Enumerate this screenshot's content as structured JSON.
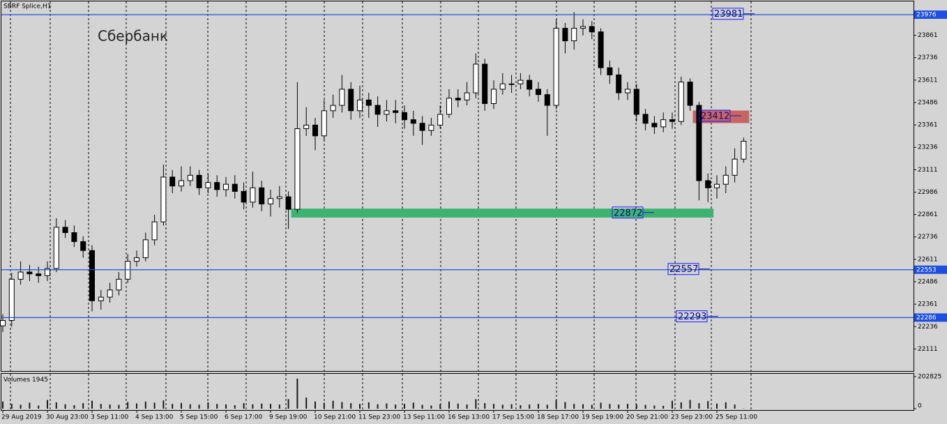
{
  "chart_data": {
    "type": "candlestick",
    "title": "SBRF Splice,H1",
    "annotation": "Сбербанк",
    "categories": [
      "29 Aug 2019",
      null,
      null,
      null,
      null,
      "30 Aug 23:00",
      null,
      null,
      null,
      null,
      "3 Sep 11:00",
      null,
      null,
      null,
      null,
      "4 Sep 13:00",
      null,
      null,
      null,
      null,
      "5 Sep 15:00",
      null,
      null,
      null,
      null,
      "6 Sep 17:00",
      null,
      null,
      null,
      null,
      "9 Sep 19:00",
      null,
      null,
      null,
      null,
      "10 Sep 21:00",
      null,
      null,
      null,
      null,
      "11 Sep 23:00",
      null,
      null,
      null,
      null,
      "13 Sep 11:00",
      null,
      null,
      null,
      null,
      "16 Sep 13:00",
      null,
      null,
      null,
      null,
      "17 Sep 15:00",
      null,
      null,
      null,
      null,
      "18 Sep 17:00",
      null,
      null,
      null,
      null,
      "19 Sep 19:00",
      null,
      null,
      null,
      null,
      "20 Sep 21:00",
      null,
      null,
      null,
      null,
      "23 Sep 23:00",
      null,
      null,
      null,
      null,
      "25 Sep 11:00",
      null,
      null,
      null
    ],
    "open": [
      22240,
      22270,
      22500,
      22540,
      22530,
      22520,
      22560,
      22790,
      22760,
      22710,
      22660,
      22380,
      22400,
      22440,
      22500,
      22600,
      22620,
      22720,
      22820,
      23070,
      23020,
      23050,
      23080,
      23010,
      23040,
      23000,
      23030,
      22990,
      22930,
      23010,
      22920,
      22950,
      22960,
      22890,
      23340,
      23360,
      23300,
      23440,
      23470,
      23560,
      23440,
      23500,
      23470,
      23420,
      23440,
      23430,
      23390,
      23370,
      23330,
      23360,
      23420,
      23510,
      23500,
      23540,
      23700,
      23480,
      23560,
      23590,
      23590,
      23610,
      23560,
      23530,
      23470,
      23900,
      23830,
      23900,
      23910,
      23880,
      23680,
      23640,
      23540,
      23560,
      23420,
      23370,
      23350,
      23390,
      23380,
      23600,
      23470,
      23050,
      23010,
      23030,
      23080,
      23170
    ],
    "high": [
      22305,
      22535,
      22600,
      22580,
      22570,
      22600,
      22840,
      22830,
      22800,
      22740,
      22690,
      22440,
      22480,
      22540,
      22640,
      22660,
      22760,
      22860,
      23140,
      23110,
      23130,
      23130,
      23110,
      23090,
      23080,
      23070,
      23080,
      23040,
      23100,
      23050,
      23000,
      23020,
      22990,
      23600,
      23460,
      23400,
      23500,
      23530,
      23640,
      23600,
      23580,
      23540,
      23520,
      23500,
      23500,
      23470,
      23440,
      23410,
      23400,
      23470,
      23560,
      23560,
      23600,
      23760,
      23730,
      23610,
      23650,
      23640,
      23650,
      23640,
      23600,
      23560,
      23950,
      23930,
      23990,
      23950,
      23940,
      23900,
      23720,
      23680,
      23600,
      23590,
      23450,
      23410,
      23430,
      23430,
      23630,
      23620,
      23490,
      23090,
      23080,
      23130,
      23230,
      23290
    ],
    "low": [
      22205,
      22235,
      22470,
      22490,
      22480,
      22490,
      22540,
      22730,
      22680,
      22620,
      22320,
      22330,
      22370,
      22410,
      22480,
      22570,
      22600,
      22690,
      22800,
      22980,
      22990,
      23020,
      22970,
      22980,
      22960,
      22960,
      22950,
      22890,
      22900,
      22880,
      22850,
      22900,
      22780,
      22870,
      23300,
      23220,
      23270,
      23400,
      23430,
      23390,
      23400,
      23400,
      23350,
      23380,
      23370,
      23340,
      23300,
      23250,
      23300,
      23340,
      23400,
      23460,
      23470,
      23510,
      23440,
      23450,
      23530,
      23540,
      23560,
      23520,
      23490,
      23300,
      23450,
      23760,
      23780,
      23860,
      23840,
      23640,
      23590,
      23500,
      23500,
      23380,
      23330,
      23310,
      23320,
      23340,
      23360,
      23440,
      22940,
      22930,
      22950,
      22980,
      23040,
      23150
    ],
    "close": [
      22270,
      22500,
      22540,
      22530,
      22520,
      22560,
      22790,
      22760,
      22710,
      22660,
      22380,
      22400,
      22440,
      22500,
      22600,
      22620,
      22720,
      22820,
      23070,
      23020,
      23050,
      23080,
      23010,
      23040,
      23000,
      23030,
      22990,
      22930,
      23010,
      22920,
      22950,
      22960,
      22890,
      23340,
      23360,
      23300,
      23440,
      23470,
      23560,
      23440,
      23500,
      23470,
      23420,
      23440,
      23430,
      23390,
      23370,
      23330,
      23360,
      23420,
      23510,
      23500,
      23540,
      23700,
      23480,
      23560,
      23590,
      23590,
      23610,
      23560,
      23530,
      23470,
      23900,
      23830,
      23900,
      23910,
      23880,
      23680,
      23640,
      23540,
      23560,
      23420,
      23370,
      23350,
      23390,
      23380,
      23600,
      23470,
      23050,
      23010,
      23030,
      23080,
      23170,
      23270
    ],
    "ylim": [
      21988,
      24050
    ],
    "yticks": [
      22111,
      22236,
      22361,
      22486,
      22611,
      22736,
      22861,
      22986,
      23111,
      23236,
      23361,
      23486,
      23611,
      23736,
      23861
    ],
    "hlines": [
      {
        "level": 23976,
        "tag": 23981,
        "color": "#1f4fe0"
      },
      {
        "level": 22553,
        "tag": 22557,
        "color": "#1f4fe0"
      },
      {
        "level": 22286,
        "tag": 22293,
        "color": "#1f4fe0"
      }
    ],
    "zones": [
      {
        "label": 23412,
        "ylim": [
          23371,
          23441
        ],
        "start": 77,
        "end": 83,
        "color": "#c86464"
      },
      {
        "label": 22872,
        "ylim": [
          22844,
          22894
        ],
        "start": 32,
        "end": 79,
        "color": "#3cb371"
      }
    ],
    "volume": {
      "label": "Volumes",
      "values": [
        45000,
        30000,
        25000,
        38000,
        20000,
        55000,
        40000,
        28000,
        22000,
        35000,
        50000,
        30000,
        26000,
        24000,
        42000,
        33000,
        45000,
        38000,
        52000,
        30000,
        36000,
        28000,
        25000,
        40000,
        30000,
        27000,
        22000,
        35000,
        28000,
        32000,
        30000,
        26000,
        60000,
        190000,
        70000,
        45000,
        38000,
        50000,
        42000,
        35000,
        30000,
        40000,
        28000,
        33000,
        26000,
        30000,
        38000,
        24000,
        20000,
        28000,
        45000,
        32000,
        26000,
        60000,
        35000,
        30000,
        25000,
        28000,
        22000,
        26000,
        30000,
        25000,
        55000,
        42000,
        30000,
        28000,
        24000,
        38000,
        30000,
        26000,
        30000,
        28000,
        24000,
        20000,
        18000,
        50000,
        40000,
        55000,
        35000,
        48000,
        32000,
        40000,
        26000,
        1945
      ],
      "ylim": [
        0,
        202825
      ],
      "yticks": [
        0,
        202825
      ],
      "color": "#1a1a1a"
    }
  }
}
